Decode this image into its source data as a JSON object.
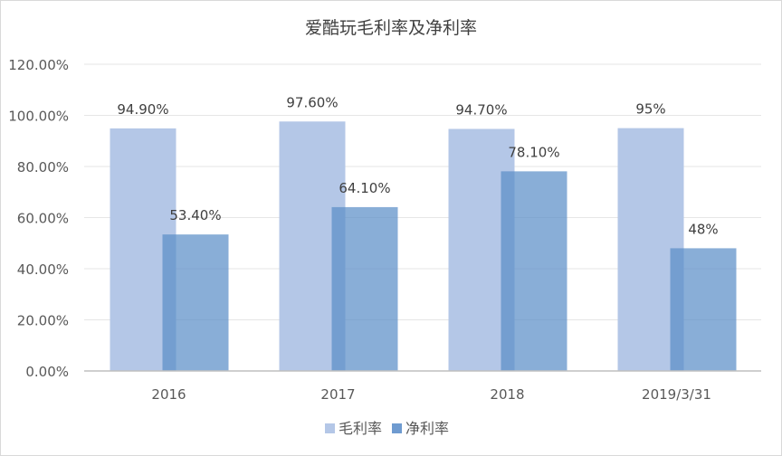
{
  "chart_data": {
    "type": "bar",
    "title": "爱酷玩毛利率及净利率",
    "categories": [
      "2016",
      "2017",
      "2018",
      "2019/3/31"
    ],
    "series": [
      {
        "name": "毛利率",
        "values": [
          94.9,
          97.6,
          94.7,
          95
        ],
        "labels": [
          "94.90%",
          "97.60%",
          "94.70%",
          "95%"
        ],
        "color": "#b4c7e7"
      },
      {
        "name": "净利率",
        "values": [
          53.4,
          64.1,
          78.1,
          48
        ],
        "labels": [
          "53.40%",
          "64.10%",
          "78.10%",
          "48%"
        ],
        "color": "#8faadc"
      }
    ],
    "y_ticks": [
      "0.00%",
      "20.00%",
      "40.00%",
      "60.00%",
      "80.00%",
      "100.00%",
      "120.00%"
    ],
    "ylim": [
      0,
      120
    ],
    "grid": true,
    "legend": "bottom"
  }
}
